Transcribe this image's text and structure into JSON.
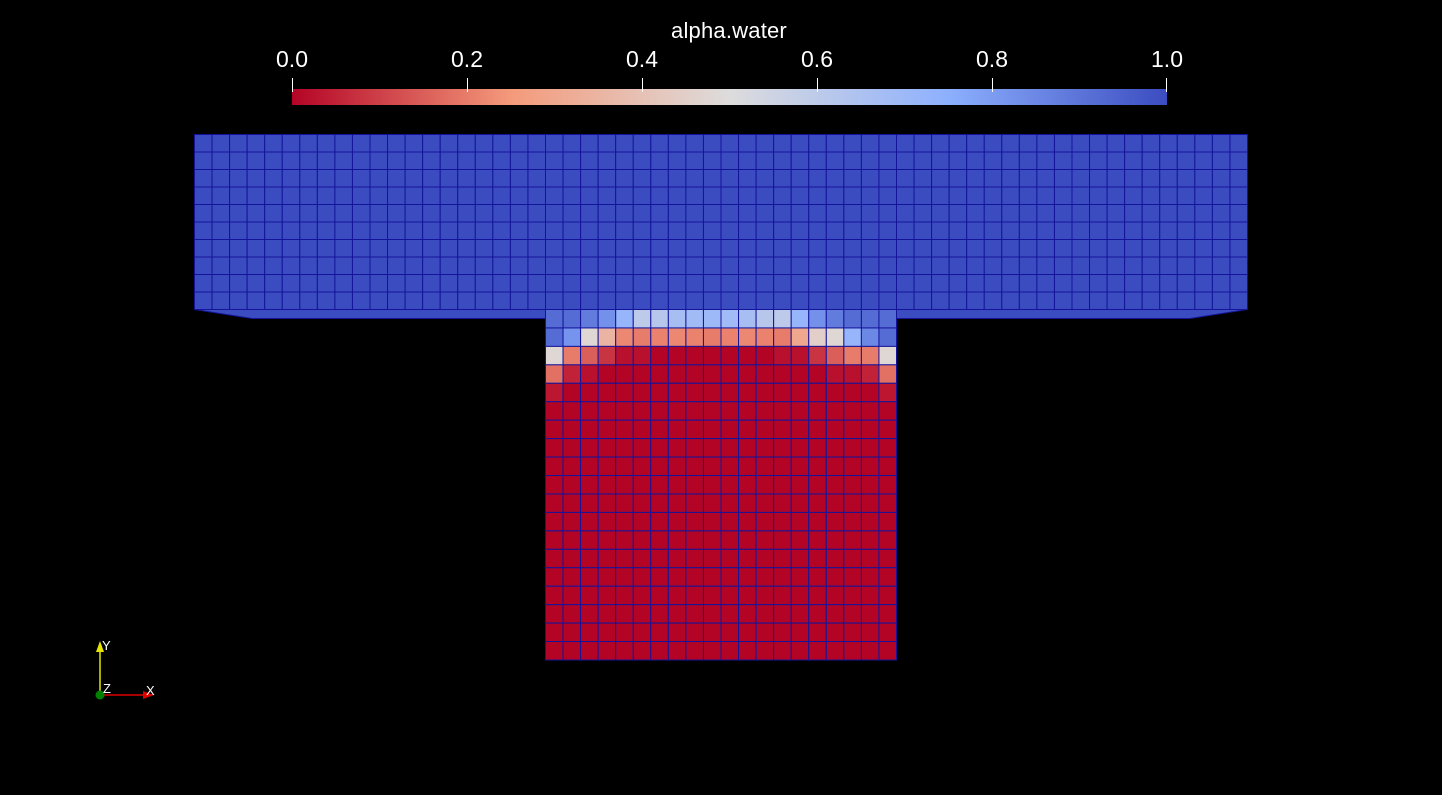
{
  "colorbar": {
    "title": "alpha.water",
    "range": [
      0,
      1
    ],
    "ticks": [
      "0.0",
      "0.2",
      "0.4",
      "0.6",
      "0.8",
      "1.0"
    ],
    "colormap": [
      "#b40426",
      "#f49a7b",
      "#dddcdc",
      "#8db0fe",
      "#3b4cc0"
    ]
  },
  "orientation_axes": {
    "y_label": "Y",
    "z_label": "Z",
    "x_label": "X",
    "y_color": "#e6e600",
    "x_color": "#e00000",
    "z_color": "#008000"
  },
  "chart_data": {
    "type": "heatmap",
    "title": "",
    "field": "alpha.water",
    "value_range": [
      0,
      1
    ],
    "upper_region": {
      "cols": 60,
      "rows": 10,
      "value": 1.0
    },
    "lower_region": {
      "cols": 20,
      "rows": 19,
      "col_offset": 20
    },
    "lower_rows": [
      [
        0.92,
        0.92,
        0.88,
        0.83,
        0.72,
        0.6,
        0.62,
        0.67,
        0.69,
        0.7,
        0.69,
        0.67,
        0.62,
        0.6,
        0.72,
        0.83,
        0.88,
        0.92,
        0.92,
        0.92
      ],
      [
        0.92,
        0.82,
        0.48,
        0.35,
        0.22,
        0.2,
        0.21,
        0.22,
        0.21,
        0.2,
        0.21,
        0.22,
        0.21,
        0.2,
        0.3,
        0.45,
        0.48,
        0.72,
        0.85,
        0.92
      ],
      [
        0.48,
        0.2,
        0.15,
        0.08,
        0.02,
        0.02,
        0.0,
        0.0,
        0.0,
        0.0,
        0.0,
        0.0,
        0.0,
        0.02,
        0.02,
        0.08,
        0.15,
        0.2,
        0.2,
        0.48
      ],
      [
        0.18,
        0.05,
        0.02,
        0.0,
        0.0,
        0.0,
        0.0,
        0.0,
        0.0,
        0.0,
        0.0,
        0.0,
        0.0,
        0.0,
        0.0,
        0.0,
        0.02,
        0.02,
        0.05,
        0.18
      ],
      [
        0.03,
        0.0,
        0.0,
        0.0,
        0.0,
        0.0,
        0.0,
        0.0,
        0.0,
        0.0,
        0.0,
        0.0,
        0.0,
        0.0,
        0.0,
        0.0,
        0.0,
        0.0,
        0.0,
        0.03
      ]
    ],
    "remaining_lower_value": 0.0
  }
}
